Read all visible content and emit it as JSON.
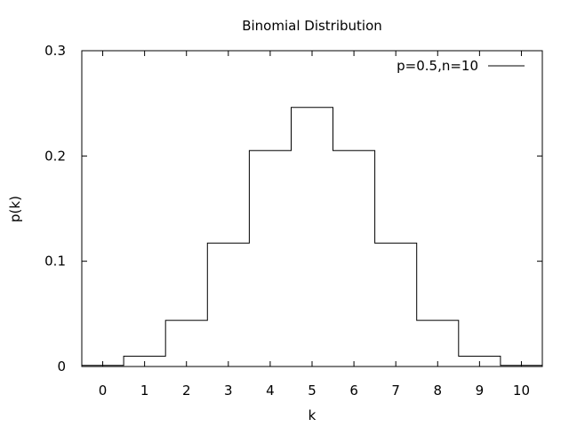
{
  "chart_data": {
    "type": "line",
    "title": "Binomial Distribution",
    "xlabel": "k",
    "ylabel": "p(k)",
    "xlim": [
      -0.5,
      10.5
    ],
    "ylim": [
      0,
      0.3
    ],
    "xticks": [
      "0",
      "1",
      "2",
      "3",
      "4",
      "5",
      "6",
      "7",
      "8",
      "9",
      "10"
    ],
    "yticks": [
      "0",
      "0.1",
      "0.2",
      "0.3"
    ],
    "grid": false,
    "legend_position": "top-right",
    "series": [
      {
        "name": "p=0.5,n=10",
        "style": "steps",
        "color": "#000000",
        "x": [
          0,
          1,
          2,
          3,
          4,
          5,
          6,
          7,
          8,
          9,
          10
        ],
        "y": [
          0.001,
          0.0098,
          0.0439,
          0.1172,
          0.2051,
          0.2461,
          0.2051,
          0.1172,
          0.0439,
          0.0098,
          0.001
        ]
      }
    ]
  }
}
